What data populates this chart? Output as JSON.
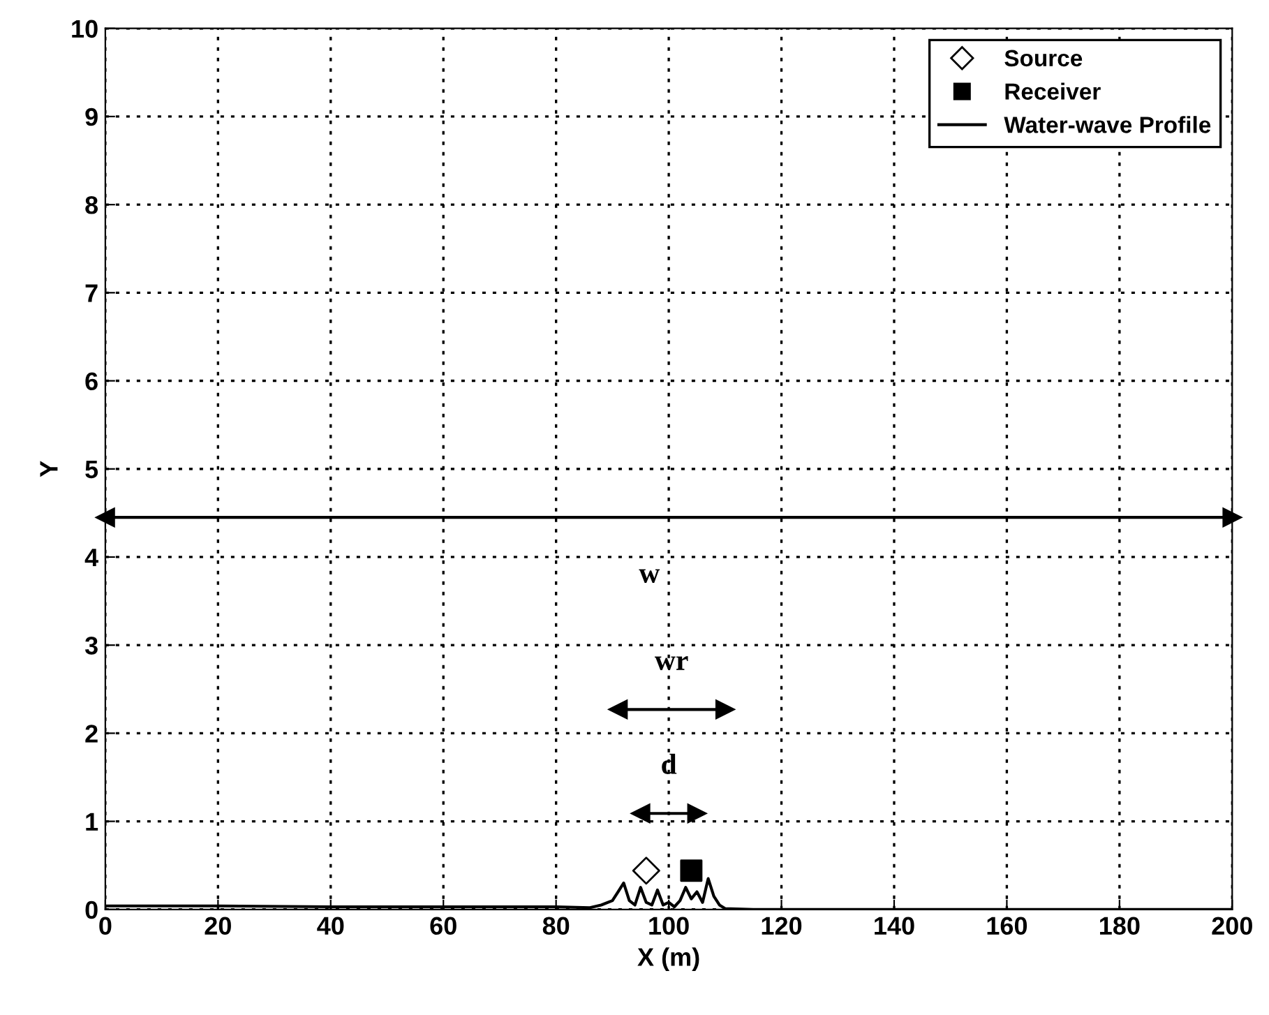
{
  "chart_data": {
    "type": "line",
    "xlabel": "X (m)",
    "ylabel": "Y",
    "xlim": [
      0,
      200
    ],
    "ylim": [
      0,
      10
    ],
    "xticks": [
      0,
      20,
      40,
      60,
      80,
      100,
      120,
      140,
      160,
      180,
      200
    ],
    "yticks": [
      0,
      1,
      2,
      3,
      4,
      5,
      6,
      7,
      8,
      9,
      10
    ],
    "grid": true,
    "legend": "top right",
    "series": [
      {
        "name": "Source",
        "type": "scatter",
        "marker": "diamond",
        "color": "#000000",
        "x": [
          96
        ],
        "values": [
          0.44
        ]
      },
      {
        "name": "Receiver",
        "type": "scatter",
        "marker": "square",
        "color": "#000000",
        "x": [
          104
        ],
        "values": [
          0.44
        ]
      },
      {
        "name": "Water-wave Profile",
        "color": "#000000",
        "x": [
          0,
          20,
          40,
          60,
          80,
          86,
          88,
          90,
          91,
          92,
          93,
          94,
          95,
          96,
          97,
          98,
          99,
          100,
          101,
          102,
          103,
          104,
          105,
          106,
          107,
          108,
          109,
          110,
          115,
          140,
          170,
          200
        ],
        "values": [
          0.04,
          0.04,
          0.03,
          0.03,
          0.03,
          0.02,
          0.05,
          0.1,
          0.2,
          0.3,
          0.1,
          0.05,
          0.25,
          0.08,
          0.05,
          0.22,
          0.05,
          0.08,
          0.03,
          0.1,
          0.25,
          0.12,
          0.2,
          0.08,
          0.35,
          0.15,
          0.05,
          0.01,
          0.0,
          0.0,
          0.0,
          0.0
        ]
      },
      {
        "marker": "triangle",
        "color": "#000000",
        "x": [
          0,
          200
        ],
        "values": [
          4.45,
          4.45
        ]
      },
      {
        "marker": "triangle",
        "color": "#000000",
        "x": [
          91,
          110
        ],
        "values": [
          2.27,
          2.27
        ]
      },
      {
        "marker": "triangle",
        "color": "#000000",
        "x": [
          95,
          105
        ],
        "values": [
          1.09,
          1.09
        ]
      }
    ],
    "annotations": [
      "w",
      "wr",
      "d"
    ]
  }
}
